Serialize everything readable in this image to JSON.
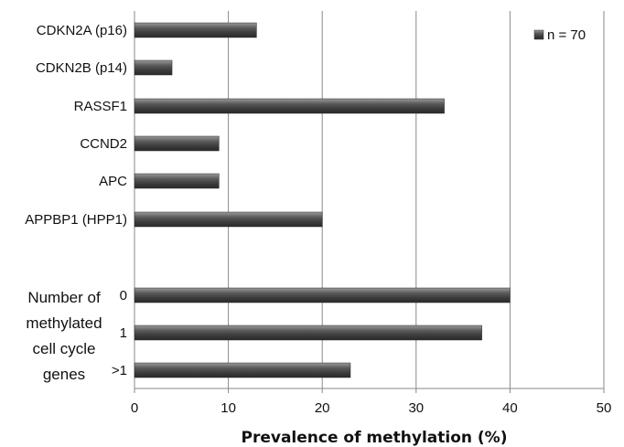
{
  "chart_data": {
    "type": "bar",
    "orientation": "horizontal",
    "categories": [
      "CDKN2A (p16)",
      "CDKN2B (p14)",
      "RASSF1",
      "CCND2",
      "APC",
      "APPBP1 (HPP1)",
      "0",
      "1",
      ">1"
    ],
    "series": [
      {
        "name": "n = 70",
        "values": [
          13,
          4,
          33,
          9,
          9,
          20,
          40,
          37,
          23
        ],
        "color": "#4a4a4a"
      }
    ],
    "group_label_lines": [
      "Number of",
      "methylated",
      "cell cycle",
      "genes"
    ],
    "xlabel": "Prevalence of methylation (%)",
    "xlim": [
      0,
      50
    ],
    "xticks": [
      "0",
      "10",
      "20",
      "30",
      "40",
      "50"
    ],
    "grid": true,
    "legend_position": "top-right"
  }
}
